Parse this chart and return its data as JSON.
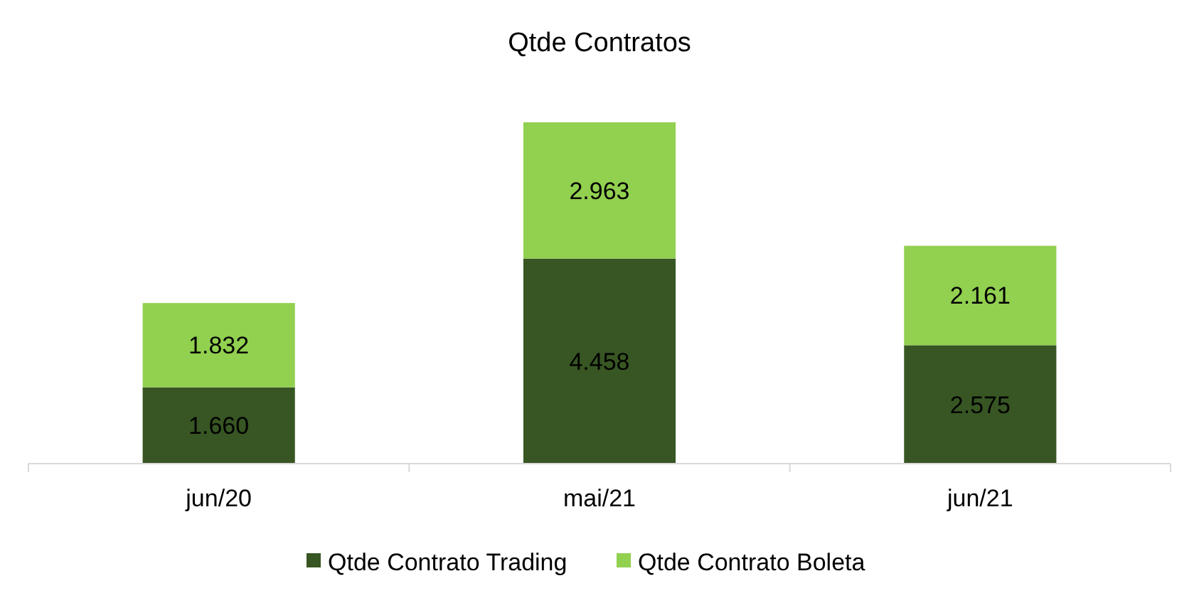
{
  "chart_data": {
    "type": "bar",
    "title": "Qtde Contratos",
    "categories": [
      "jun/20",
      "mai/21",
      "jun/21"
    ],
    "stacked": true,
    "legend": "bottom",
    "series": [
      {
        "name": "Qtde Contrato Trading",
        "color": "#375623",
        "values": [
          1660,
          4458,
          2575
        ],
        "value_labels": [
          "1.660",
          "4.458",
          "2.575"
        ]
      },
      {
        "name": "Qtde Contrato Boleta",
        "color": "#92d050",
        "values": [
          1832,
          2963,
          2161
        ],
        "value_labels": [
          "1.832",
          "2.963",
          "2.161"
        ]
      }
    ]
  }
}
